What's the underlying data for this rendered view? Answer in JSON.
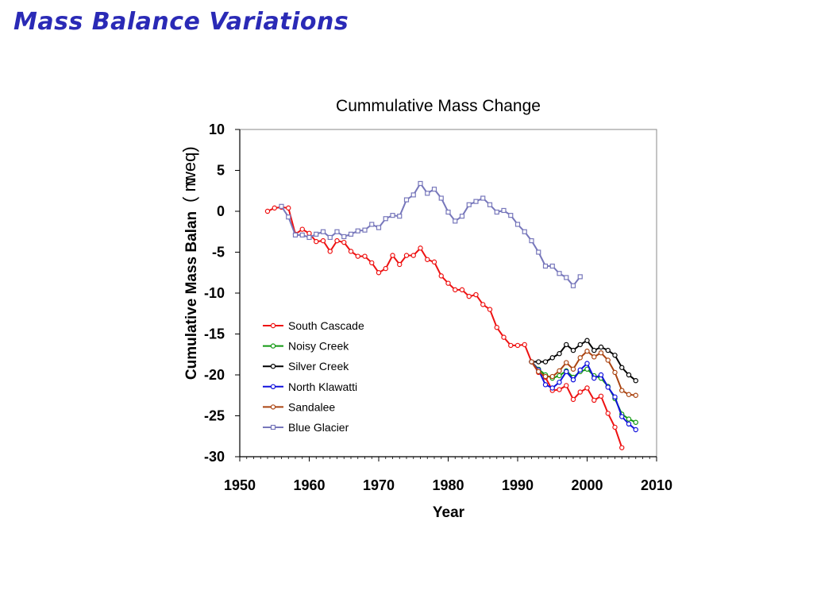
{
  "slide": {
    "title": "Mass Balance Variations"
  },
  "chart_data": {
    "type": "line",
    "title": "Cummulative Mass Change",
    "xlabel": "Year",
    "ylabel": "Cumulative Mass Balan",
    "ylabel_unit_a": "( m",
    "ylabel_unit_b": "weq)",
    "xlim": [
      1950,
      2010
    ],
    "ylim": [
      -30,
      10
    ],
    "xticks": [
      1950,
      1960,
      1970,
      1980,
      1990,
      2000,
      2010
    ],
    "yticks": [
      10,
      5,
      0,
      -5,
      -10,
      -15,
      -20,
      -25,
      -30
    ],
    "grid": false,
    "legend": "inside-lower-left",
    "series": [
      {
        "name": "South Cascade",
        "color": "#ee1111",
        "marker": "circle",
        "x": [
          1954,
          1955,
          1956,
          1957,
          1958,
          1959,
          1960,
          1961,
          1962,
          1963,
          1964,
          1965,
          1966,
          1967,
          1968,
          1969,
          1970,
          1971,
          1972,
          1973,
          1974,
          1975,
          1976,
          1977,
          1978,
          1979,
          1980,
          1981,
          1982,
          1983,
          1984,
          1985,
          1986,
          1987,
          1988,
          1989,
          1990,
          1991,
          1992,
          1993,
          1994,
          1995,
          1996,
          1997,
          1998,
          1999,
          2000,
          2001,
          2002,
          2003,
          2004,
          2005
        ],
        "y": [
          0.0,
          0.4,
          0.5,
          0.4,
          -2.8,
          -2.2,
          -2.7,
          -3.7,
          -3.6,
          -4.9,
          -3.6,
          -3.8,
          -4.9,
          -5.5,
          -5.5,
          -6.3,
          -7.5,
          -7.0,
          -5.4,
          -6.5,
          -5.4,
          -5.4,
          -4.5,
          -5.9,
          -6.2,
          -7.9,
          -8.8,
          -9.6,
          -9.6,
          -10.4,
          -10.2,
          -11.4,
          -12.0,
          -14.2,
          -15.4,
          -16.4,
          -16.4,
          -16.3,
          -18.4,
          -19.7,
          -20.3,
          -21.9,
          -21.8,
          -21.3,
          -23.0,
          -22.1,
          -21.6,
          -23.1,
          -22.6,
          -24.7,
          -26.4,
          -28.9
        ]
      },
      {
        "name": "Noisy Creek",
        "color": "#119911",
        "marker": "circle",
        "x": [
          1992,
          1993,
          1994,
          1995,
          1996,
          1997,
          1998,
          1999,
          2000,
          2001,
          2002,
          2003,
          2004,
          2005,
          2006,
          2007
        ],
        "y": [
          -18.4,
          -19.3,
          -20.0,
          -20.4,
          -20.1,
          -19.5,
          -20.3,
          -19.6,
          -19.3,
          -20.1,
          -20.4,
          -21.4,
          -22.9,
          -24.8,
          -25.4,
          -25.8
        ]
      },
      {
        "name": "Silver Creek",
        "color": "#000000",
        "marker": "circle",
        "x": [
          1992,
          1993,
          1994,
          1995,
          1996,
          1997,
          1998,
          1999,
          2000,
          2001,
          2002,
          2003,
          2004,
          2005,
          2006,
          2007
        ],
        "y": [
          -18.4,
          -18.4,
          -18.4,
          -17.9,
          -17.4,
          -16.3,
          -17.0,
          -16.3,
          -15.8,
          -17.0,
          -16.6,
          -17.0,
          -17.6,
          -19.1,
          -20.0,
          -20.7
        ]
      },
      {
        "name": "North Klawatti",
        "color": "#1111dd",
        "marker": "circle",
        "x": [
          1992,
          1993,
          1994,
          1995,
          1996,
          1997,
          1998,
          1999,
          2000,
          2001,
          2002,
          2003,
          2004,
          2005,
          2006,
          2007
        ],
        "y": [
          -18.4,
          -19.4,
          -21.2,
          -21.6,
          -20.9,
          -19.6,
          -20.6,
          -19.4,
          -18.6,
          -20.4,
          -20.0,
          -21.5,
          -22.7,
          -25.1,
          -26.0,
          -26.7
        ]
      },
      {
        "name": "Sandalee",
        "color": "#aa4411",
        "marker": "circle",
        "x": [
          1992,
          1993,
          1994,
          1995,
          1996,
          1997,
          1998,
          1999,
          2000,
          2001,
          2002,
          2003,
          2004,
          2005,
          2006,
          2007
        ],
        "y": [
          -18.4,
          -19.6,
          -20.2,
          -20.2,
          -19.5,
          -18.5,
          -19.3,
          -17.9,
          -17.1,
          -17.8,
          -17.3,
          -18.2,
          -19.7,
          -21.9,
          -22.4,
          -22.5
        ]
      },
      {
        "name": "Blue Glacier",
        "color": "#7777bb",
        "marker": "square",
        "x": [
          1956,
          1957,
          1958,
          1959,
          1960,
          1961,
          1962,
          1963,
          1964,
          1965,
          1966,
          1967,
          1968,
          1969,
          1970,
          1971,
          1972,
          1973,
          1974,
          1975,
          1976,
          1977,
          1978,
          1979,
          1980,
          1981,
          1982,
          1983,
          1984,
          1985,
          1986,
          1987,
          1988,
          1989,
          1990,
          1991,
          1992,
          1993,
          1994,
          1995,
          1996,
          1997,
          1998,
          1999
        ],
        "y": [
          0.6,
          -0.7,
          -2.9,
          -2.9,
          -3.2,
          -2.8,
          -2.5,
          -3.2,
          -2.5,
          -3.1,
          -2.8,
          -2.4,
          -2.3,
          -1.6,
          -2.0,
          -0.9,
          -0.5,
          -0.6,
          1.4,
          2.0,
          3.4,
          2.2,
          2.7,
          1.6,
          -0.1,
          -1.2,
          -0.6,
          0.8,
          1.2,
          1.6,
          0.8,
          -0.1,
          0.1,
          -0.5,
          -1.6,
          -2.5,
          -3.6,
          -5.0,
          -6.7,
          -6.7,
          -7.6,
          -8.1,
          -9.1,
          -8.0
        ]
      }
    ]
  }
}
